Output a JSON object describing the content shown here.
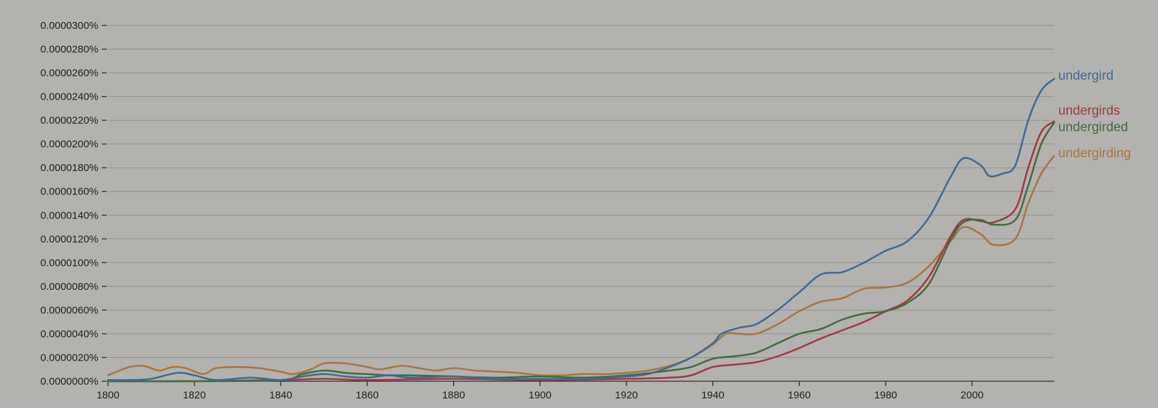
{
  "chart_data": {
    "type": "line",
    "title": "",
    "xlabel": "",
    "ylabel": "",
    "xlim": [
      1800,
      2019
    ],
    "ylim": [
      0,
      3e-05
    ],
    "y_ticks": [
      0,
      2e-06,
      4e-06,
      6e-06,
      8e-06,
      1e-05,
      1.2e-05,
      1.4e-05,
      1.6e-05,
      1.8e-05,
      2e-05,
      2.2e-05,
      2.4e-05,
      2.6e-05,
      2.8e-05,
      3e-05
    ],
    "y_tick_labels": [
      "0.0000000%",
      "0.0000020%",
      "0.0000040%",
      "0.0000060%",
      "0.0000080%",
      "0.0000100%",
      "0.0000120%",
      "0.0000140%",
      "0.0000160%",
      "0.0000180%",
      "0.0000200%",
      "0.0000220%",
      "0.0000240%",
      "0.0000260%",
      "0.0000280%",
      "0.0000300%"
    ],
    "x_ticks": [
      1800,
      1820,
      1840,
      1860,
      1880,
      1900,
      1920,
      1940,
      1960,
      1980,
      2000
    ],
    "x_tick_labels": [
      "1800",
      "1820",
      "1840",
      "1860",
      "1880",
      "1900",
      "1920",
      "1940",
      "1960",
      "1980",
      "2000"
    ],
    "grid": true,
    "legend": "right-end labels",
    "series": [
      {
        "name": "undergird",
        "color": "#3f6a9a",
        "points": [
          [
            1800,
            1e-07
          ],
          [
            1805,
            1e-07
          ],
          [
            1810,
            2e-07
          ],
          [
            1816,
            7e-07
          ],
          [
            1820,
            5e-07
          ],
          [
            1825,
            1e-07
          ],
          [
            1833,
            3e-07
          ],
          [
            1840,
            1e-07
          ],
          [
            1845,
            4e-07
          ],
          [
            1850,
            6e-07
          ],
          [
            1855,
            4e-07
          ],
          [
            1860,
            3e-07
          ],
          [
            1865,
            5e-07
          ],
          [
            1870,
            3e-07
          ],
          [
            1880,
            4e-07
          ],
          [
            1890,
            2e-07
          ],
          [
            1900,
            2e-07
          ],
          [
            1910,
            2e-07
          ],
          [
            1920,
            4e-07
          ],
          [
            1925,
            6e-07
          ],
          [
            1930,
            1.2e-06
          ],
          [
            1935,
            2e-06
          ],
          [
            1940,
            3.2e-06
          ],
          [
            1942,
            4e-06
          ],
          [
            1946,
            4.5e-06
          ],
          [
            1950,
            4.8e-06
          ],
          [
            1955,
            6e-06
          ],
          [
            1960,
            7.5e-06
          ],
          [
            1965,
            9e-06
          ],
          [
            1970,
            9.2e-06
          ],
          [
            1975,
            1e-05
          ],
          [
            1980,
            1.1e-05
          ],
          [
            1985,
            1.18e-05
          ],
          [
            1990,
            1.38e-05
          ],
          [
            1995,
            1.72e-05
          ],
          [
            1998,
            1.88e-05
          ],
          [
            2002,
            1.82e-05
          ],
          [
            2004,
            1.73e-05
          ],
          [
            2007,
            1.75e-05
          ],
          [
            2010,
            1.82e-05
          ],
          [
            2013,
            2.2e-05
          ],
          [
            2016,
            2.45e-05
          ],
          [
            2019,
            2.55e-05
          ]
        ]
      },
      {
        "name": "undergirds",
        "color": "#a03a40",
        "points": [
          [
            1800,
            0.0
          ],
          [
            1820,
            0.0
          ],
          [
            1840,
            1e-07
          ],
          [
            1850,
            2e-07
          ],
          [
            1860,
            1e-07
          ],
          [
            1880,
            2e-07
          ],
          [
            1900,
            1e-07
          ],
          [
            1920,
            2e-07
          ],
          [
            1930,
            3e-07
          ],
          [
            1935,
            5e-07
          ],
          [
            1940,
            1.2e-06
          ],
          [
            1945,
            1.4e-06
          ],
          [
            1950,
            1.6e-06
          ],
          [
            1955,
            2.1e-06
          ],
          [
            1960,
            2.8e-06
          ],
          [
            1965,
            3.6e-06
          ],
          [
            1970,
            4.3e-06
          ],
          [
            1975,
            5e-06
          ],
          [
            1980,
            5.9e-06
          ],
          [
            1985,
            6.8e-06
          ],
          [
            1990,
            8.8e-06
          ],
          [
            1995,
            1.22e-05
          ],
          [
            1998,
            1.36e-05
          ],
          [
            2002,
            1.35e-05
          ],
          [
            2005,
            1.34e-05
          ],
          [
            2010,
            1.45e-05
          ],
          [
            2013,
            1.8e-05
          ],
          [
            2016,
            2.1e-05
          ],
          [
            2019,
            2.19e-05
          ]
        ]
      },
      {
        "name": "undergirded",
        "color": "#3e6e3c",
        "points": [
          [
            1800,
            0.0
          ],
          [
            1820,
            0.0
          ],
          [
            1840,
            1e-07
          ],
          [
            1845,
            6e-07
          ],
          [
            1850,
            9e-07
          ],
          [
            1855,
            7e-07
          ],
          [
            1860,
            6e-07
          ],
          [
            1865,
            5e-07
          ],
          [
            1870,
            5e-07
          ],
          [
            1880,
            4e-07
          ],
          [
            1890,
            3e-07
          ],
          [
            1900,
            4e-07
          ],
          [
            1910,
            3e-07
          ],
          [
            1920,
            5e-07
          ],
          [
            1930,
            9e-07
          ],
          [
            1935,
            1.2e-06
          ],
          [
            1940,
            1.9e-06
          ],
          [
            1945,
            2.1e-06
          ],
          [
            1950,
            2.4e-06
          ],
          [
            1955,
            3.2e-06
          ],
          [
            1960,
            4e-06
          ],
          [
            1965,
            4.4e-06
          ],
          [
            1970,
            5.2e-06
          ],
          [
            1975,
            5.7e-06
          ],
          [
            1980,
            5.9e-06
          ],
          [
            1985,
            6.6e-06
          ],
          [
            1990,
            8.2e-06
          ],
          [
            1995,
            1.19e-05
          ],
          [
            1998,
            1.34e-05
          ],
          [
            2002,
            1.36e-05
          ],
          [
            2005,
            1.32e-05
          ],
          [
            2010,
            1.36e-05
          ],
          [
            2013,
            1.65e-05
          ],
          [
            2016,
            2e-05
          ],
          [
            2019,
            2.18e-05
          ]
        ]
      },
      {
        "name": "undergirding",
        "color": "#a9753f",
        "points": [
          [
            1800,
            5e-07
          ],
          [
            1802,
            8e-07
          ],
          [
            1805,
            1.2e-06
          ],
          [
            1808,
            1.3e-06
          ],
          [
            1810,
            1.1e-06
          ],
          [
            1812,
            9e-07
          ],
          [
            1815,
            1.2e-06
          ],
          [
            1818,
            1.1e-06
          ],
          [
            1822,
            6e-07
          ],
          [
            1825,
            1.1e-06
          ],
          [
            1830,
            1.2e-06
          ],
          [
            1835,
            1.1e-06
          ],
          [
            1840,
            8e-07
          ],
          [
            1843,
            6e-07
          ],
          [
            1847,
            1e-06
          ],
          [
            1850,
            1.5e-06
          ],
          [
            1855,
            1.5e-06
          ],
          [
            1860,
            1.2e-06
          ],
          [
            1863,
            1e-06
          ],
          [
            1868,
            1.3e-06
          ],
          [
            1872,
            1.1e-06
          ],
          [
            1876,
            9e-07
          ],
          [
            1880,
            1.1e-06
          ],
          [
            1885,
            9e-07
          ],
          [
            1890,
            8e-07
          ],
          [
            1895,
            7e-07
          ],
          [
            1900,
            5e-07
          ],
          [
            1905,
            5e-07
          ],
          [
            1910,
            6e-07
          ],
          [
            1915,
            6e-07
          ],
          [
            1920,
            7e-07
          ],
          [
            1925,
            9e-07
          ],
          [
            1930,
            1.3e-06
          ],
          [
            1935,
            2e-06
          ],
          [
            1940,
            3.1e-06
          ],
          [
            1943,
            4e-06
          ],
          [
            1946,
            4e-06
          ],
          [
            1950,
            4e-06
          ],
          [
            1955,
            4.8e-06
          ],
          [
            1960,
            5.9e-06
          ],
          [
            1965,
            6.7e-06
          ],
          [
            1970,
            7e-06
          ],
          [
            1975,
            7.8e-06
          ],
          [
            1980,
            7.9e-06
          ],
          [
            1985,
            8.3e-06
          ],
          [
            1990,
            9.7e-06
          ],
          [
            1995,
            1.18e-05
          ],
          [
            1998,
            1.3e-05
          ],
          [
            2002,
            1.24e-05
          ],
          [
            2005,
            1.15e-05
          ],
          [
            2010,
            1.2e-05
          ],
          [
            2013,
            1.5e-05
          ],
          [
            2016,
            1.75e-05
          ],
          [
            2019,
            1.9e-05
          ]
        ]
      }
    ]
  }
}
